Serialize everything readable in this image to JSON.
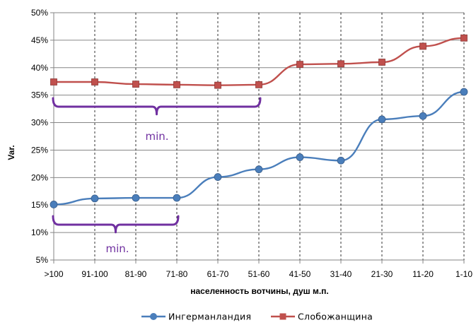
{
  "chart_data": {
    "type": "line",
    "categories": [
      ">100",
      "91-100",
      "81-90",
      "71-80",
      "61-70",
      "51-60",
      "41-50",
      "31-40",
      "21-30",
      "11-20",
      "1-10"
    ],
    "series": [
      {
        "name": "Ингерманландия",
        "color": "#4a7ebb",
        "marker": "circle",
        "values": [
          15.1,
          16.2,
          16.3,
          16.3,
          20.1,
          21.5,
          23.7,
          23.1,
          30.6,
          31.2,
          35.6
        ]
      },
      {
        "name": "Слобожанщина",
        "color": "#c0504d",
        "marker": "square",
        "values": [
          37.4,
          37.4,
          37.0,
          36.9,
          36.8,
          36.9,
          40.6,
          40.7,
          41.0,
          43.9,
          45.4
        ]
      }
    ],
    "xlabel": "населенность вотчины, душ м.п.",
    "ylabel": "Var.",
    "ylim": [
      5,
      50
    ],
    "yticks": [
      "5%",
      "10%",
      "15%",
      "20%",
      "25%",
      "30%",
      "35%",
      "40%",
      "45%",
      "50%"
    ],
    "grid": "horizontal solid, vertical dashed",
    "legend": "bottom",
    "annotations": [
      {
        "text": "min.",
        "color": "#7030a0",
        "series": "Слобожанщина",
        "from_category": ">100",
        "to_category": "51-60"
      },
      {
        "text": "min.",
        "color": "#7030a0",
        "series": "Ингерманландия",
        "from_category": ">100",
        "to_category": "71-80"
      }
    ]
  }
}
